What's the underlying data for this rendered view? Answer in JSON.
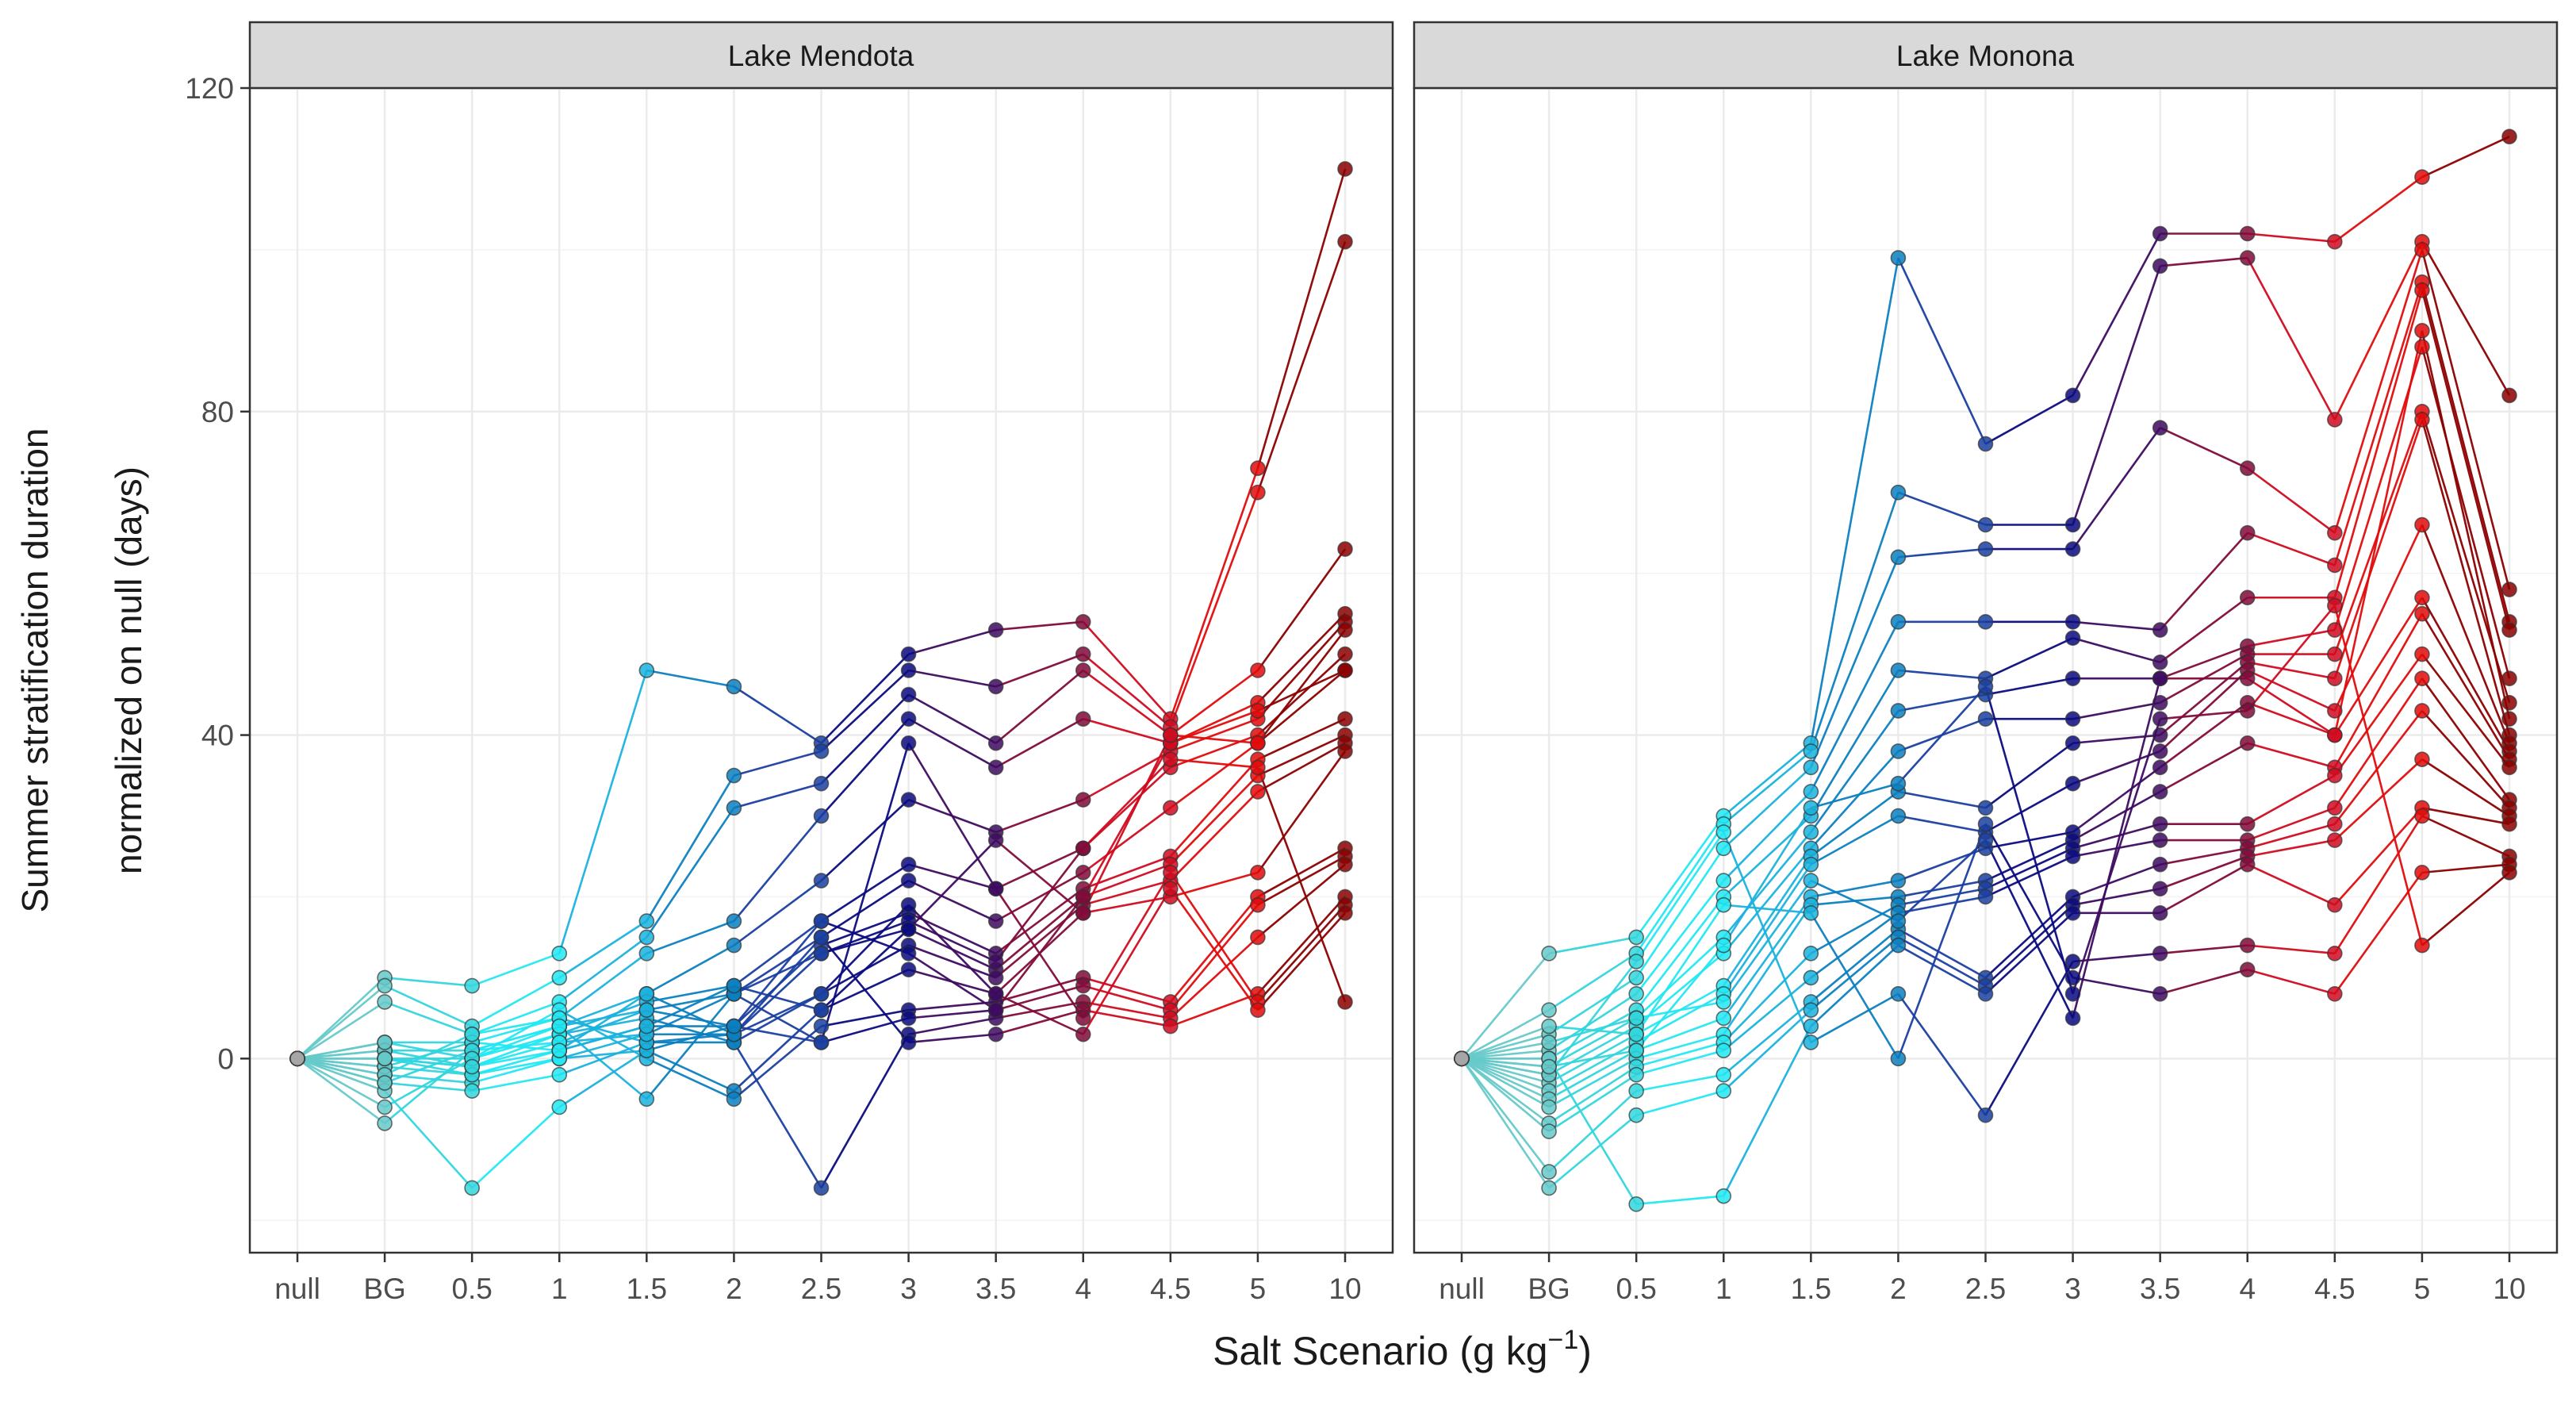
{
  "chart_data": {
    "type": "line",
    "y_axis_title_line1": "Summer stratification duration",
    "y_axis_title_line2": "normalized on null (days)",
    "x_axis_title_main": "Salt Scenario (g kg",
    "x_axis_title_superscript": "−1",
    "x_axis_title_close": ")",
    "x_categories": [
      "null",
      "BG",
      "0.5",
      "1",
      "1.5",
      "2",
      "2.5",
      "3",
      "3.5",
      "4",
      "4.5",
      "5",
      "10"
    ],
    "y_ticks": [
      0,
      40,
      80,
      120
    ],
    "ylim": [
      -24,
      120
    ],
    "grid": true,
    "legend": "none",
    "colors": {
      "null": "#a6a6a6",
      "BG": "#66c9c9",
      "0.5": "#33d6dd",
      "1": "#22e8f2",
      "1.5": "#1ab2dd",
      "2": "#0b7fc0",
      "2.5": "#1a3fa0",
      "3": "#0b0b80",
      "3.5": "#3d0b60",
      "4": "#800b3a",
      "4.5": "#d00b20",
      "5": "#e00b0b",
      "10": "#8b0000"
    },
    "panels": [
      {
        "name": "Lake Mendota",
        "values": {
          "null": [
            0,
            0,
            0,
            0,
            0,
            0,
            0,
            0,
            0,
            0,
            0,
            0,
            0,
            0,
            0,
            0,
            0,
            0,
            0,
            0
          ],
          "BG": [
            10,
            9,
            7,
            2,
            1,
            0,
            0,
            -1,
            -2,
            -3,
            -4,
            -6,
            -8,
            1,
            -1,
            0,
            -2,
            -3,
            2,
            0
          ],
          "0.5": [
            9,
            4,
            3,
            2,
            1,
            0,
            -1,
            -2,
            -3,
            -4,
            -16,
            0,
            1,
            -1,
            2,
            -2,
            3,
            1,
            0,
            -1
          ],
          "1": [
            13,
            10,
            7,
            5,
            4,
            3,
            2,
            1,
            0,
            -2,
            -6,
            6,
            4,
            3,
            1,
            0,
            5,
            2,
            4,
            1
          ],
          "1.5": [
            48,
            17,
            15,
            13,
            8,
            7,
            6,
            4,
            3,
            2,
            1,
            0,
            -5,
            5,
            8,
            1,
            2,
            3,
            6,
            4
          ],
          "2": [
            46,
            35,
            31,
            17,
            14,
            9,
            8,
            4,
            3,
            2,
            -4,
            -5,
            8,
            2,
            3,
            4,
            3,
            8,
            4,
            9
          ],
          "2.5": [
            39,
            38,
            34,
            30,
            22,
            17,
            15,
            14,
            13,
            8,
            6,
            4,
            2,
            -16,
            15,
            2,
            8,
            13,
            17,
            6
          ],
          "3": [
            50,
            48,
            45,
            42,
            32,
            24,
            22,
            18,
            16,
            14,
            11,
            6,
            5,
            3,
            2,
            39,
            19,
            17,
            13,
            16
          ],
          "3.5": [
            53,
            46,
            39,
            36,
            28,
            21,
            17,
            13,
            11,
            10,
            8,
            7,
            6,
            5,
            3,
            21,
            8,
            12,
            6,
            27
          ],
          "4": [
            54,
            50,
            48,
            42,
            32,
            26,
            23,
            21,
            20,
            19,
            18,
            10,
            9,
            7,
            6,
            5,
            3,
            26,
            20,
            18
          ],
          "4.5": [
            42,
            41,
            40,
            39,
            38,
            36,
            31,
            25,
            24,
            22,
            20,
            7,
            6,
            5,
            4,
            23,
            21,
            37,
            39,
            40
          ],
          "5": [
            73,
            70,
            48,
            44,
            42,
            40,
            39,
            37,
            35,
            33,
            23,
            20,
            19,
            15,
            8,
            7,
            6,
            36,
            43,
            39
          ],
          "10": [
            110,
            101,
            63,
            55,
            54,
            50,
            48,
            42,
            40,
            39,
            38,
            26,
            25,
            24,
            20,
            19,
            18,
            7,
            48,
            53
          ]
        }
      },
      {
        "name": "Lake Monona",
        "values": {
          "null": [
            0,
            0,
            0,
            0,
            0,
            0,
            0,
            0,
            0,
            0,
            0,
            0,
            0,
            0,
            0,
            0,
            0,
            0,
            0,
            0
          ],
          "BG": [
            13,
            6,
            3,
            1,
            0,
            -1,
            -2,
            -3,
            -4,
            -5,
            -6,
            -8,
            -9,
            -14,
            -16,
            0,
            -2,
            4,
            -1,
            2
          ],
          "0.5": [
            15,
            13,
            10,
            8,
            6,
            5,
            4,
            3,
            2,
            1,
            0,
            -1,
            -2,
            -4,
            -7,
            -18,
            12,
            3,
            1,
            5
          ],
          "1": [
            30,
            29,
            26,
            22,
            20,
            15,
            13,
            9,
            8,
            5,
            3,
            2,
            1,
            -2,
            -4,
            -17,
            28,
            19,
            14,
            7
          ],
          "1.5": [
            39,
            38,
            36,
            33,
            30,
            28,
            26,
            25,
            24,
            20,
            19,
            13,
            10,
            7,
            6,
            4,
            2,
            18,
            31,
            22
          ],
          "2": [
            99,
            70,
            62,
            54,
            48,
            43,
            38,
            33,
            30,
            22,
            20,
            19,
            18,
            16,
            15,
            14,
            8,
            0,
            34,
            17
          ],
          "2.5": [
            76,
            66,
            63,
            54,
            47,
            45,
            42,
            31,
            28,
            26,
            22,
            21,
            20,
            10,
            9,
            8,
            -7,
            29,
            46,
            27
          ],
          "3": [
            82,
            66,
            63,
            54,
            52,
            47,
            42,
            39,
            34,
            28,
            27,
            26,
            25,
            20,
            19,
            18,
            12,
            10,
            8,
            5
          ],
          "3.5": [
            102,
            98,
            78,
            53,
            49,
            47,
            44,
            40,
            38,
            36,
            33,
            29,
            27,
            24,
            21,
            18,
            13,
            8,
            42,
            47
          ],
          "4": [
            102,
            99,
            73,
            65,
            57,
            51,
            50,
            49,
            48,
            44,
            39,
            29,
            27,
            26,
            25,
            24,
            14,
            11,
            43,
            47
          ],
          "4.5": [
            101,
            79,
            65,
            61,
            57,
            53,
            50,
            47,
            43,
            40,
            36,
            35,
            31,
            29,
            27,
            19,
            13,
            8,
            56,
            40
          ],
          "5": [
            109,
            101,
            100,
            96,
            95,
            88,
            80,
            79,
            66,
            57,
            55,
            50,
            47,
            43,
            37,
            31,
            30,
            23,
            14,
            90
          ],
          "10": [
            114,
            82,
            58,
            54,
            53,
            47,
            44,
            40,
            39,
            38,
            37,
            36,
            32,
            31,
            30,
            29,
            25,
            24,
            23,
            42
          ]
        }
      }
    ]
  }
}
